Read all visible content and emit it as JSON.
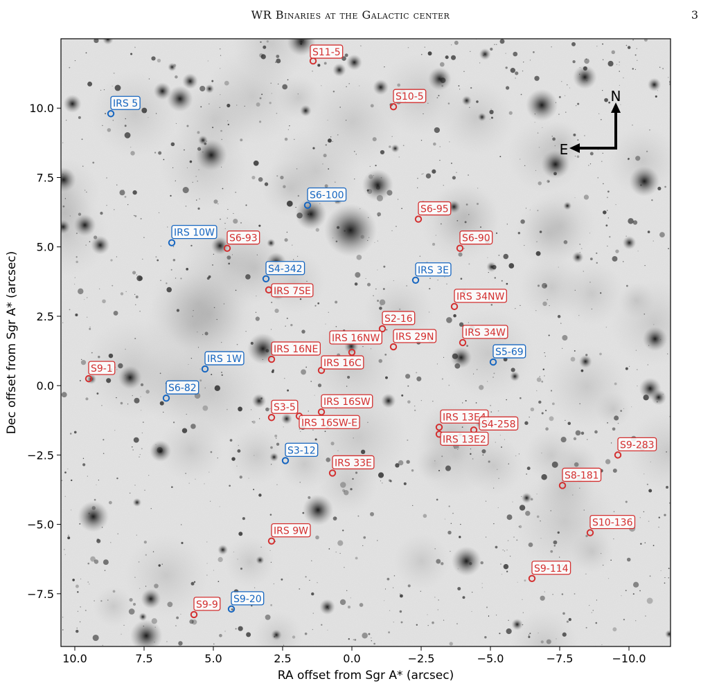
{
  "header": {
    "running_title": "WR Binaries at the Galactic center",
    "page_number": "3"
  },
  "chart_data": {
    "type": "scatter",
    "xlabel": "RA offset from Sgr A* (arcsec)",
    "ylabel": "Dec offset from Sgr A* (arcsec)",
    "xlim": [
      10.5,
      -11.5
    ],
    "ylim": [
      -9.4,
      12.5
    ],
    "x_ticks": [
      10.0,
      7.5,
      5.0,
      2.5,
      0.0,
      -2.5,
      -5.0,
      -7.5,
      -10.0
    ],
    "x_tick_labels": [
      "10.0",
      "7.5",
      "5.0",
      "2.5",
      "0.0",
      "−2.5",
      "−5.0",
      "−7.5",
      "−10.0"
    ],
    "y_ticks": [
      10.0,
      7.5,
      5.0,
      2.5,
      0.0,
      -2.5,
      -5.0,
      -7.5
    ],
    "y_tick_labels": [
      "10.0",
      "7.5",
      "5.0",
      "2.5",
      "0.0",
      "−2.5",
      "−5.0",
      "−7.5"
    ],
    "colors": {
      "blue": "#1565c0",
      "red": "#d32f2f"
    },
    "compass": {
      "north_label": "N",
      "east_label": "E"
    },
    "sources": [
      {
        "label": "S11-5",
        "x": 1.4,
        "y": 11.7,
        "color": "red",
        "lx": 1.5,
        "ly": 11.8
      },
      {
        "label": "IRS 5",
        "x": 8.7,
        "y": 9.8,
        "color": "blue",
        "lx": 8.7,
        "ly": 9.95
      },
      {
        "label": "S10-5",
        "x": -1.5,
        "y": 10.05,
        "color": "red",
        "lx": -1.5,
        "ly": 10.2
      },
      {
        "label": "S6-100",
        "x": 1.6,
        "y": 6.5,
        "color": "blue",
        "lx": 1.6,
        "ly": 6.65
      },
      {
        "label": "S6-95",
        "x": -2.4,
        "y": 6.0,
        "color": "red",
        "lx": -2.4,
        "ly": 6.15
      },
      {
        "label": "IRS 10W",
        "x": 6.5,
        "y": 5.15,
        "color": "blue",
        "lx": 6.5,
        "ly": 5.3
      },
      {
        "label": "S6-93",
        "x": 4.5,
        "y": 4.95,
        "color": "red",
        "lx": 4.5,
        "ly": 5.1
      },
      {
        "label": "S6-90",
        "x": -3.9,
        "y": 4.95,
        "color": "red",
        "lx": -3.9,
        "ly": 5.1
      },
      {
        "label": "S4-342",
        "x": 3.1,
        "y": 3.85,
        "color": "blue",
        "lx": 3.1,
        "ly": 4.0
      },
      {
        "label": "IRS 3E",
        "x": -2.3,
        "y": 3.8,
        "color": "blue",
        "lx": -2.3,
        "ly": 3.95
      },
      {
        "label": "IRS 7SE",
        "x": 3.0,
        "y": 3.45,
        "color": "red",
        "lx": 2.9,
        "ly": 3.2
      },
      {
        "label": "IRS 34NW",
        "x": -3.7,
        "y": 2.85,
        "color": "red",
        "lx": -3.7,
        "ly": 3.0
      },
      {
        "label": "S2-16",
        "x": -1.1,
        "y": 2.05,
        "color": "red",
        "lx": -1.1,
        "ly": 2.2
      },
      {
        "label": "IRS 16NW",
        "x": 0.0,
        "y": 1.2,
        "color": "red",
        "lx": 0.8,
        "ly": 1.5
      },
      {
        "label": "IRS 29N",
        "x": -1.5,
        "y": 1.4,
        "color": "red",
        "lx": -1.5,
        "ly": 1.55
      },
      {
        "label": "IRS 34W",
        "x": -4.0,
        "y": 1.55,
        "color": "red",
        "lx": -4.0,
        "ly": 1.7
      },
      {
        "label": "IRS 16NE",
        "x": 2.9,
        "y": 0.95,
        "color": "red",
        "lx": 2.9,
        "ly": 1.1
      },
      {
        "label": "IRS 16C",
        "x": 1.1,
        "y": 0.55,
        "color": "red",
        "lx": 1.1,
        "ly": 0.6
      },
      {
        "label": "S5-69",
        "x": -5.1,
        "y": 0.85,
        "color": "blue",
        "lx": -5.1,
        "ly": 1.0
      },
      {
        "label": "IRS 1W",
        "x": 5.3,
        "y": 0.6,
        "color": "blue",
        "lx": 5.3,
        "ly": 0.75
      },
      {
        "label": "S9-1",
        "x": 9.5,
        "y": 0.25,
        "color": "red",
        "lx": 9.5,
        "ly": 0.4
      },
      {
        "label": "S6-82",
        "x": 6.7,
        "y": -0.45,
        "color": "blue",
        "lx": 6.7,
        "ly": -0.3
      },
      {
        "label": "IRS 16SW",
        "x": 1.1,
        "y": -0.95,
        "color": "red",
        "lx": 1.1,
        "ly": -0.8
      },
      {
        "label": "S3-5",
        "x": 2.9,
        "y": -1.15,
        "color": "red",
        "lx": 2.9,
        "ly": -1.0
      },
      {
        "label": "IRS 16SW-E",
        "x": 1.9,
        "y": -1.1,
        "color": "red",
        "lx": 1.9,
        "ly": -1.55
      },
      {
        "label": "IRS 13E4",
        "x": -3.15,
        "y": -1.5,
        "color": "red",
        "lx": -3.2,
        "ly": -1.35
      },
      {
        "label": "IRS 13E2",
        "x": -3.15,
        "y": -1.75,
        "color": "red",
        "lx": -3.2,
        "ly": -2.15
      },
      {
        "label": "S4-258",
        "x": -4.4,
        "y": -1.6,
        "color": "red",
        "lx": -4.6,
        "ly": -1.6
      },
      {
        "label": "S9-283",
        "x": -9.6,
        "y": -2.5,
        "color": "red",
        "lx": -9.6,
        "ly": -2.35
      },
      {
        "label": "S3-12",
        "x": 2.4,
        "y": -2.7,
        "color": "blue",
        "lx": 2.4,
        "ly": -2.55
      },
      {
        "label": "IRS 33E",
        "x": 0.7,
        "y": -3.15,
        "color": "red",
        "lx": 0.7,
        "ly": -3.0
      },
      {
        "label": "S8-181",
        "x": -7.6,
        "y": -3.6,
        "color": "red",
        "lx": -7.6,
        "ly": -3.45
      },
      {
        "label": "S10-136",
        "x": -8.6,
        "y": -5.3,
        "color": "red",
        "lx": -8.6,
        "ly": -5.15
      },
      {
        "label": "IRS 9W",
        "x": 2.9,
        "y": -5.6,
        "color": "red",
        "lx": 2.9,
        "ly": -5.45
      },
      {
        "label": "S9-114",
        "x": -6.5,
        "y": -6.95,
        "color": "red",
        "lx": -6.5,
        "ly": -6.8
      },
      {
        "label": "S9-9",
        "x": 5.7,
        "y": -8.25,
        "color": "red",
        "lx": 5.7,
        "ly": -8.1
      },
      {
        "label": "S9-20",
        "x": 4.35,
        "y": -8.05,
        "color": "blue",
        "lx": 4.35,
        "ly": -7.9
      }
    ]
  }
}
